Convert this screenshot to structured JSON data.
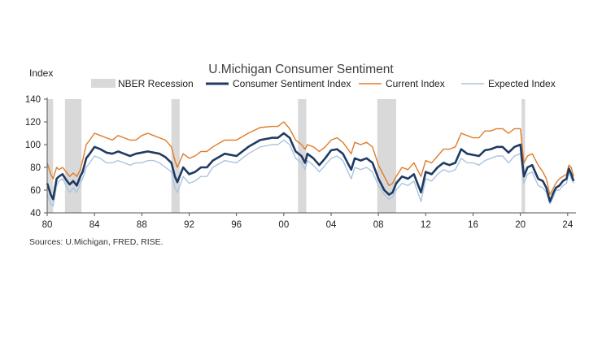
{
  "chart_data": {
    "type": "line",
    "title": "U.Michigan Consumer Sentiment",
    "ylabel": "Index",
    "xlabel": "",
    "source": "Sources: U.Michigan, FRED, RISE.",
    "ylim": [
      40,
      140
    ],
    "xlim": [
      1980,
      2024.7
    ],
    "yticks": [
      40,
      60,
      80,
      100,
      120,
      140
    ],
    "xticks": [
      {
        "value": 1980,
        "label": "80"
      },
      {
        "value": 1984,
        "label": "84"
      },
      {
        "value": 1988,
        "label": "88"
      },
      {
        "value": 1992,
        "label": "92"
      },
      {
        "value": 1996,
        "label": "96"
      },
      {
        "value": 2000,
        "label": "00"
      },
      {
        "value": 2004,
        "label": "04"
      },
      {
        "value": 2008,
        "label": "08"
      },
      {
        "value": 2012,
        "label": "12"
      },
      {
        "value": 2016,
        "label": "16"
      },
      {
        "value": 2020,
        "label": "20"
      },
      {
        "value": 2024,
        "label": "24"
      }
    ],
    "legend": [
      {
        "name": "NBER Recession",
        "kind": "band",
        "color": "#d9d9d9"
      },
      {
        "name": "Consumer Sentiment Index",
        "kind": "line",
        "color": "#1f3a63"
      },
      {
        "name": "Current Index",
        "kind": "line",
        "color": "#e07b28"
      },
      {
        "name": "Expected Index",
        "kind": "line",
        "color": "#a9c4e0"
      }
    ],
    "recessions": [
      [
        1980.0,
        1980.5
      ],
      [
        1981.5,
        1982.9
      ],
      [
        1990.5,
        1991.2
      ],
      [
        2001.2,
        2001.9
      ],
      [
        2007.9,
        2009.5
      ],
      [
        2020.1,
        2020.4
      ]
    ],
    "series": [
      {
        "name": "Consumer Sentiment Index",
        "color": "#1f3a63",
        "x": [
          1980.0,
          1980.3,
          1980.5,
          1980.8,
          1981.0,
          1981.3,
          1981.6,
          1981.9,
          1982.2,
          1982.5,
          1982.8,
          1983.0,
          1983.3,
          1983.6,
          1984.0,
          1984.5,
          1985.0,
          1985.5,
          1986.0,
          1986.5,
          1987.0,
          1987.5,
          1988.0,
          1988.5,
          1989.0,
          1989.5,
          1990.0,
          1990.5,
          1990.8,
          1991.0,
          1991.5,
          1992.0,
          1992.5,
          1993.0,
          1993.5,
          1994.0,
          1995.0,
          1996.0,
          1997.0,
          1998.0,
          1999.0,
          1999.5,
          2000.0,
          2000.5,
          2001.0,
          2001.5,
          2001.8,
          2002.0,
          2002.5,
          2003.0,
          2003.5,
          2004.0,
          2004.5,
          2005.0,
          2005.7,
          2006.0,
          2006.5,
          2007.0,
          2007.5,
          2008.0,
          2008.5,
          2008.9,
          2009.2,
          2009.5,
          2010.0,
          2010.5,
          2011.0,
          2011.6,
          2012.0,
          2012.5,
          2013.0,
          2013.5,
          2014.0,
          2014.5,
          2015.0,
          2015.5,
          2016.0,
          2016.5,
          2017.0,
          2017.5,
          2018.0,
          2018.5,
          2019.0,
          2019.5,
          2020.0,
          2020.3,
          2020.6,
          2021.0,
          2021.5,
          2021.9,
          2022.2,
          2022.5,
          2022.8,
          2023.0,
          2023.3,
          2023.6,
          2023.9,
          2024.1,
          2024.3,
          2024.5
        ],
        "values": [
          66,
          56,
          52,
          70,
          72,
          74,
          69,
          65,
          68,
          64,
          72,
          76,
          88,
          92,
          98,
          96,
          93,
          92,
          94,
          92,
          90,
          92,
          93,
          94,
          93,
          92,
          89,
          84,
          72,
          67,
          80,
          74,
          76,
          80,
          80,
          86,
          92,
          90,
          98,
          104,
          106,
          106,
          110,
          106,
          94,
          90,
          84,
          92,
          88,
          82,
          88,
          95,
          96,
          92,
          78,
          88,
          86,
          88,
          84,
          70,
          60,
          56,
          58,
          66,
          72,
          70,
          74,
          58,
          76,
          74,
          80,
          84,
          82,
          84,
          96,
          92,
          91,
          90,
          95,
          96,
          98,
          98,
          93,
          98,
          100,
          72,
          80,
          82,
          70,
          68,
          62,
          50,
          58,
          62,
          64,
          68,
          70,
          79,
          74,
          68
        ]
      },
      {
        "name": "Current Index",
        "color": "#e07b28",
        "x": [
          1980.0,
          1980.3,
          1980.5,
          1980.8,
          1981.0,
          1981.3,
          1981.6,
          1981.9,
          1982.2,
          1982.5,
          1982.8,
          1983.0,
          1983.3,
          1983.6,
          1984.0,
          1984.5,
          1985.0,
          1985.5,
          1986.0,
          1986.5,
          1987.0,
          1987.5,
          1988.0,
          1988.5,
          1989.0,
          1989.5,
          1990.0,
          1990.5,
          1990.8,
          1991.0,
          1991.5,
          1992.0,
          1992.5,
          1993.0,
          1993.5,
          1994.0,
          1995.0,
          1996.0,
          1997.0,
          1998.0,
          1999.0,
          1999.5,
          2000.0,
          2000.5,
          2001.0,
          2001.5,
          2001.8,
          2002.0,
          2002.5,
          2003.0,
          2003.5,
          2004.0,
          2004.5,
          2005.0,
          2005.7,
          2006.0,
          2006.5,
          2007.0,
          2007.5,
          2008.0,
          2008.5,
          2008.9,
          2009.2,
          2009.5,
          2010.0,
          2010.5,
          2011.0,
          2011.6,
          2012.0,
          2012.5,
          2013.0,
          2013.5,
          2014.0,
          2014.5,
          2015.0,
          2015.5,
          2016.0,
          2016.5,
          2017.0,
          2017.5,
          2018.0,
          2018.5,
          2019.0,
          2019.5,
          2020.0,
          2020.3,
          2020.6,
          2021.0,
          2021.5,
          2021.9,
          2022.2,
          2022.5,
          2022.8,
          2023.0,
          2023.3,
          2023.6,
          2023.9,
          2024.1,
          2024.3,
          2024.5
        ],
        "values": [
          84,
          74,
          70,
          80,
          78,
          80,
          76,
          72,
          75,
          72,
          78,
          86,
          100,
          104,
          110,
          108,
          106,
          104,
          108,
          106,
          104,
          104,
          108,
          110,
          108,
          106,
          104,
          98,
          86,
          80,
          92,
          88,
          90,
          94,
          94,
          98,
          104,
          104,
          110,
          115,
          116,
          116,
          120,
          114,
          104,
          100,
          96,
          100,
          98,
          94,
          98,
          104,
          106,
          102,
          92,
          102,
          100,
          102,
          98,
          82,
          72,
          64,
          66,
          72,
          80,
          78,
          84,
          72,
          86,
          84,
          90,
          96,
          96,
          98,
          110,
          108,
          106,
          106,
          112,
          112,
          114,
          114,
          110,
          114,
          114,
          84,
          90,
          92,
          82,
          76,
          70,
          56,
          62,
          66,
          70,
          72,
          74,
          82,
          80,
          72
        ]
      },
      {
        "name": "Expected Index",
        "color": "#a9c4e0",
        "x": [
          1980.0,
          1980.3,
          1980.5,
          1980.8,
          1981.0,
          1981.3,
          1981.6,
          1981.9,
          1982.2,
          1982.5,
          1982.8,
          1983.0,
          1983.3,
          1983.6,
          1984.0,
          1984.5,
          1985.0,
          1985.5,
          1986.0,
          1986.5,
          1987.0,
          1987.5,
          1988.0,
          1988.5,
          1989.0,
          1989.5,
          1990.0,
          1990.5,
          1990.8,
          1991.0,
          1991.5,
          1992.0,
          1992.5,
          1993.0,
          1993.5,
          1994.0,
          1995.0,
          1996.0,
          1997.0,
          1998.0,
          1999.0,
          1999.5,
          2000.0,
          2000.5,
          2001.0,
          2001.5,
          2001.8,
          2002.0,
          2002.5,
          2003.0,
          2003.5,
          2004.0,
          2004.5,
          2005.0,
          2005.7,
          2006.0,
          2006.5,
          2007.0,
          2007.5,
          2008.0,
          2008.5,
          2008.9,
          2009.2,
          2009.5,
          2010.0,
          2010.5,
          2011.0,
          2011.6,
          2012.0,
          2012.5,
          2013.0,
          2013.5,
          2014.0,
          2014.5,
          2015.0,
          2015.5,
          2016.0,
          2016.5,
          2017.0,
          2017.5,
          2018.0,
          2018.5,
          2019.0,
          2019.5,
          2020.0,
          2020.3,
          2020.6,
          2021.0,
          2021.5,
          2021.9,
          2022.2,
          2022.5,
          2022.8,
          2023.0,
          2023.3,
          2023.6,
          2023.9,
          2024.1,
          2024.3,
          2024.5
        ],
        "values": [
          56,
          48,
          46,
          64,
          68,
          70,
          64,
          58,
          62,
          58,
          66,
          70,
          80,
          84,
          90,
          88,
          84,
          84,
          86,
          84,
          82,
          84,
          84,
          86,
          86,
          84,
          80,
          76,
          62,
          58,
          72,
          66,
          68,
          72,
          72,
          80,
          86,
          84,
          92,
          98,
          100,
          100,
          104,
          100,
          88,
          84,
          78,
          86,
          82,
          76,
          82,
          88,
          90,
          86,
          70,
          80,
          78,
          80,
          76,
          64,
          56,
          52,
          54,
          60,
          66,
          64,
          68,
          50,
          70,
          68,
          74,
          78,
          76,
          78,
          88,
          84,
          84,
          82,
          86,
          88,
          90,
          90,
          84,
          90,
          92,
          66,
          74,
          76,
          64,
          62,
          58,
          48,
          54,
          60,
          60,
          64,
          66,
          76,
          70,
          66
        ]
      }
    ]
  }
}
